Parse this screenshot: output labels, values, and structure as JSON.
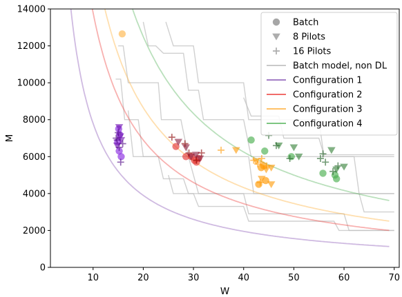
{
  "chart_data": {
    "type": "scatter",
    "xlabel": "W",
    "ylabel": "M",
    "xlim": [
      1.5,
      71
    ],
    "ylim": [
      0,
      14000
    ],
    "x_ticks": [
      10,
      20,
      30,
      40,
      50,
      60,
      70
    ],
    "y_ticks": [
      0,
      2000,
      4000,
      6000,
      8000,
      10000,
      12000,
      14000
    ],
    "grid": false,
    "legend_position": "top-right",
    "legend": [
      {
        "label": "Batch",
        "marker": "circle",
        "color": "#777777"
      },
      {
        "label": "8 Pilots",
        "marker": "triangle-down",
        "color": "#777777"
      },
      {
        "label": "16 Pilots",
        "marker": "plus",
        "color": "#777777"
      },
      {
        "label": "Batch model, non DL",
        "marker": "line",
        "color": "#c0c0c0"
      },
      {
        "label": "Configuration 1",
        "marker": "line",
        "color": "#9467bd"
      },
      {
        "label": "Configuration 2",
        "marker": "line",
        "color": "#ef5350"
      },
      {
        "label": "Configuration 3",
        "marker": "line",
        "color": "#ffb74d"
      },
      {
        "label": "Configuration 4",
        "marker": "line",
        "color": "#66bb6a"
      }
    ],
    "curves": [
      {
        "name": "Configuration 1",
        "color": "#9467bd",
        "k": 78000
      },
      {
        "name": "Configuration 2",
        "color": "#ef5350",
        "k": 138000
      },
      {
        "name": "Configuration 3",
        "color": "#ffb74d",
        "k": 173000
      },
      {
        "name": "Configuration 4",
        "color": "#66bb6a",
        "k": 250000
      }
    ],
    "step_curves": [
      {
        "name": "Batch model, non DL",
        "color": "#c0c0c0",
        "points": [
          [
            14.5,
            10200
          ],
          [
            15.5,
            10200
          ],
          [
            16.3,
            8000
          ],
          [
            19,
            8000
          ],
          [
            20,
            6000
          ],
          [
            29,
            6000
          ],
          [
            31,
            4000
          ],
          [
            63,
            4000
          ],
          [
            64,
            3000
          ],
          [
            70,
            3000
          ]
        ]
      },
      {
        "name": "Batch model, non DL",
        "color": "#c0c0c0",
        "points": [
          [
            15,
            12000
          ],
          [
            16,
            12000
          ],
          [
            17,
            10000
          ],
          [
            23,
            10000
          ],
          [
            23.6,
            8000
          ],
          [
            27.5,
            8000
          ],
          [
            29,
            6000
          ],
          [
            41,
            6000
          ],
          [
            42,
            4000
          ],
          [
            70,
            4000
          ]
        ]
      },
      {
        "name": "Batch model, non DL",
        "color": "#c0c0c0",
        "points": [
          [
            20,
            13300
          ],
          [
            21,
            12000
          ],
          [
            22.5,
            12000
          ],
          [
            24,
            11600
          ],
          [
            28,
            11600
          ],
          [
            29,
            9600
          ],
          [
            31,
            9600
          ],
          [
            32,
            8000
          ],
          [
            40,
            8000
          ],
          [
            41.5,
            6000
          ],
          [
            62,
            6000
          ],
          [
            63,
            4000
          ],
          [
            70,
            4000
          ]
        ]
      },
      {
        "name": "Batch model, non DL",
        "color": "#c0c0c0",
        "points": [
          [
            24.5,
            13300
          ],
          [
            26,
            12000
          ],
          [
            30,
            12000
          ],
          [
            31,
            10000
          ],
          [
            40,
            10000
          ],
          [
            41,
            8000
          ],
          [
            55,
            8000
          ],
          [
            56,
            6000
          ],
          [
            70,
            6000
          ]
        ]
      },
      {
        "name": "Batch model, non DL",
        "color": "#c0c0c0",
        "points": [
          [
            17,
            8500
          ],
          [
            18,
            6000
          ],
          [
            23,
            6000
          ],
          [
            24,
            4800
          ],
          [
            28,
            4800
          ],
          [
            29,
            4000
          ],
          [
            40,
            4000
          ],
          [
            41,
            2900
          ],
          [
            60,
            2900
          ],
          [
            61,
            2000
          ],
          [
            70,
            2000
          ]
        ]
      },
      {
        "name": "Batch model, non DL",
        "color": "#c0c0c0",
        "points": [
          [
            25,
            5000
          ],
          [
            26,
            4000
          ],
          [
            30,
            4000
          ],
          [
            31,
            3300
          ],
          [
            40,
            3300
          ],
          [
            41,
            2500
          ],
          [
            58,
            2500
          ],
          [
            59,
            2000
          ],
          [
            70,
            2000
          ]
        ]
      },
      {
        "name": "Batch model, non DL",
        "color": "#c0c0c0",
        "points": [
          [
            40,
            9200
          ],
          [
            41.5,
            8200
          ],
          [
            47,
            8200
          ],
          [
            48,
            7000
          ],
          [
            55,
            7000
          ],
          [
            56,
            6100
          ],
          [
            70,
            6100
          ]
        ]
      }
    ],
    "series": [
      {
        "name": "Batch",
        "marker": "circle",
        "color": "#8a2be2",
        "points": [
          [
            15.2,
            6300
          ],
          [
            15.6,
            6000
          ],
          [
            15.1,
            7500
          ],
          [
            14.9,
            6800
          ],
          [
            15.3,
            7200
          ]
        ]
      },
      {
        "name": "Batch",
        "marker": "circle",
        "color": "#ffb74d",
        "points": [
          [
            15.8,
            12650
          ]
        ]
      },
      {
        "name": "Batch",
        "marker": "circle",
        "color": "#e53935",
        "points": [
          [
            26.5,
            6550
          ],
          [
            28.5,
            6000
          ],
          [
            29.6,
            6000
          ],
          [
            30.2,
            5800
          ],
          [
            30.6,
            5700
          ],
          [
            31.0,
            5900
          ]
        ]
      },
      {
        "name": "Batch",
        "marker": "circle",
        "color": "#ff9800",
        "points": [
          [
            43,
            4500
          ],
          [
            43.5,
            5400
          ],
          [
            44,
            5500
          ],
          [
            44.4,
            4700
          ]
        ]
      },
      {
        "name": "Batch",
        "marker": "circle",
        "color": "#4caf50",
        "points": [
          [
            41.5,
            6900
          ],
          [
            44.2,
            6300
          ],
          [
            49.5,
            6000
          ],
          [
            55.8,
            5100
          ],
          [
            58.5,
            4800
          ],
          [
            58.2,
            5000
          ]
        ]
      },
      {
        "name": "8 Pilots",
        "marker": "triangle-down",
        "color": "#6a0dad",
        "points": [
          [
            15.2,
            7600
          ],
          [
            15.6,
            6900
          ],
          [
            14.8,
            6600
          ],
          [
            15.4,
            7100
          ]
        ]
      },
      {
        "name": "8 Pilots",
        "marker": "triangle-down",
        "color": "#8b1a3a",
        "points": [
          [
            27.0,
            6800
          ],
          [
            28.5,
            6500
          ],
          [
            29.5,
            6000
          ],
          [
            30.5,
            6100
          ],
          [
            31.3,
            5900
          ]
        ]
      },
      {
        "name": "8 Pilots",
        "marker": "triangle-down",
        "color": "#ff9800",
        "points": [
          [
            38.5,
            6350
          ],
          [
            42.5,
            5750
          ],
          [
            43.6,
            4800
          ],
          [
            44.5,
            5300
          ],
          [
            45.5,
            5400
          ],
          [
            45.5,
            4500
          ]
        ]
      },
      {
        "name": "8 Pilots",
        "marker": "triangle-down",
        "color": "#2e7d32",
        "points": [
          [
            47,
            6600
          ],
          [
            50,
            6500
          ],
          [
            51,
            6000
          ],
          [
            57.5,
            6350
          ],
          [
            60,
            5450
          ],
          [
            58.5,
            5300
          ]
        ]
      },
      {
        "name": "16 Pilots",
        "marker": "plus",
        "color": "#4b0082",
        "points": [
          [
            14.6,
            7000
          ],
          [
            15.2,
            6500
          ],
          [
            15.5,
            5700
          ],
          [
            14.8,
            6900
          ],
          [
            15.9,
            6700
          ],
          [
            15.0,
            7300
          ]
        ]
      },
      {
        "name": "16 Pilots",
        "marker": "plus",
        "color": "#8b0000",
        "points": [
          [
            25.7,
            7050
          ],
          [
            28.3,
            6700
          ],
          [
            29.1,
            6200
          ],
          [
            30.6,
            5800
          ],
          [
            31.6,
            6200
          ]
        ]
      },
      {
        "name": "16 Pilots",
        "marker": "plus",
        "color": "#ff9800",
        "points": [
          [
            35.5,
            6350
          ],
          [
            42.0,
            5800
          ],
          [
            42.8,
            5600
          ],
          [
            43.4,
            5700
          ],
          [
            43.6,
            5900
          ],
          [
            44.6,
            5500
          ],
          [
            43.3,
            4600
          ]
        ]
      },
      {
        "name": "16 Pilots",
        "marker": "plus",
        "color": "#1b5e20",
        "points": [
          [
            45,
            7150
          ],
          [
            46.5,
            6600
          ],
          [
            49.2,
            5900
          ],
          [
            55.3,
            5900
          ],
          [
            55.8,
            6150
          ],
          [
            56.3,
            5700
          ],
          [
            57.8,
            5200
          ],
          [
            58.8,
            5500
          ]
        ]
      }
    ]
  }
}
